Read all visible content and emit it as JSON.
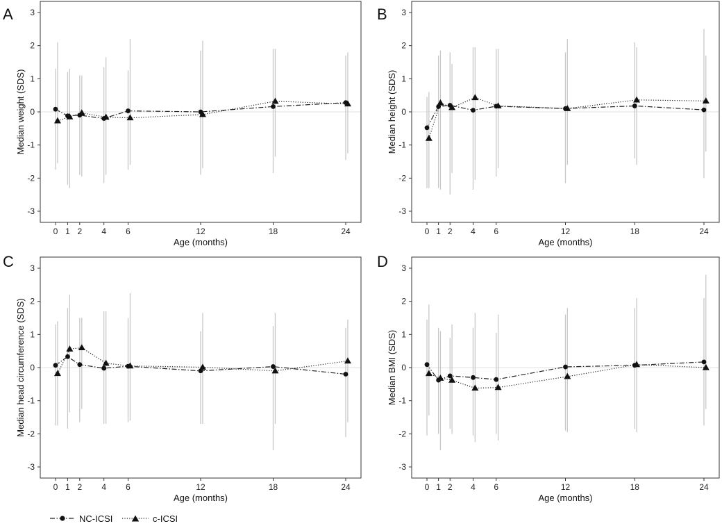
{
  "legend": {
    "nc_label": "NC-ICSI",
    "c_label": "c-ICSI"
  },
  "chart_data": [
    {
      "type": "line",
      "panel": "A",
      "title": "",
      "xlabel": "Age (months)",
      "ylabel": "Median weight (SDS)",
      "x": [
        0,
        1,
        2,
        4,
        6,
        12,
        18,
        24
      ],
      "xticks": [
        0,
        1,
        2,
        4,
        6,
        12,
        18,
        24
      ],
      "ylim": [
        -3,
        3
      ],
      "yticks": [
        -3,
        -2,
        -1,
        0,
        1,
        2,
        3
      ],
      "grid": false,
      "series": [
        {
          "name": "NC-ICSI",
          "marker": "circle",
          "line": "dash-dot",
          "values": [
            0.08,
            -0.12,
            -0.1,
            -0.2,
            0.03,
            0.0,
            0.16,
            0.28
          ],
          "lower": [
            -1.75,
            -2.2,
            -1.9,
            -2.15,
            -1.75,
            -1.9,
            -1.85,
            -1.45
          ],
          "upper": [
            1.3,
            1.2,
            1.1,
            1.35,
            1.25,
            1.85,
            1.9,
            1.7
          ]
        },
        {
          "name": "c-ICSI",
          "marker": "triangle",
          "line": "dotted",
          "values": [
            -0.27,
            -0.15,
            -0.03,
            -0.16,
            -0.18,
            -0.08,
            0.32,
            0.24
          ],
          "lower": [
            -1.55,
            -2.3,
            -1.95,
            -1.9,
            -1.6,
            -1.7,
            -1.35,
            -1.25
          ],
          "upper": [
            2.1,
            1.3,
            1.1,
            1.65,
            2.2,
            2.15,
            1.9,
            1.8
          ]
        }
      ]
    },
    {
      "type": "line",
      "panel": "B",
      "title": "",
      "xlabel": "Age (months)",
      "ylabel": "Median height (SDS)",
      "x": [
        0,
        1,
        2,
        4,
        6,
        12,
        18,
        24
      ],
      "xticks": [
        0,
        1,
        2,
        4,
        6,
        12,
        18,
        24
      ],
      "ylim": [
        -3,
        3
      ],
      "yticks": [
        -3,
        -2,
        -1,
        0,
        1,
        2,
        3
      ],
      "grid": false,
      "series": [
        {
          "name": "NC-ICSI",
          "marker": "circle",
          "line": "dash-dot",
          "values": [
            -0.48,
            0.16,
            0.2,
            0.05,
            0.17,
            0.1,
            0.18,
            0.06
          ],
          "lower": [
            -2.3,
            -2.3,
            -2.5,
            -2.35,
            -1.95,
            -2.15,
            -1.4,
            -2.0
          ],
          "upper": [
            0.45,
            1.7,
            1.8,
            1.95,
            1.9,
            1.8,
            2.1,
            2.5
          ]
        },
        {
          "name": "c-ICSI",
          "marker": "triangle",
          "line": "dotted",
          "values": [
            -0.8,
            0.27,
            0.13,
            0.43,
            0.18,
            0.1,
            0.36,
            0.33
          ],
          "lower": [
            -2.3,
            -2.35,
            -1.85,
            -2.05,
            -1.7,
            -1.6,
            -1.6,
            -1.2
          ],
          "upper": [
            0.6,
            1.85,
            1.45,
            1.95,
            1.9,
            2.2,
            1.95,
            1.7
          ]
        }
      ]
    },
    {
      "type": "line",
      "panel": "C",
      "title": "",
      "xlabel": "Age (months)",
      "ylabel": "Median head circumference (SDS)",
      "x": [
        0,
        1,
        2,
        4,
        6,
        12,
        18,
        24
      ],
      "xticks": [
        0,
        1,
        2,
        4,
        6,
        12,
        18,
        24
      ],
      "ylim": [
        -3,
        3
      ],
      "yticks": [
        -3,
        -2,
        -1,
        0,
        1,
        2,
        3
      ],
      "grid": false,
      "series": [
        {
          "name": "NC-ICSI",
          "marker": "circle",
          "line": "dash-dot",
          "values": [
            0.07,
            0.33,
            0.09,
            -0.02,
            0.04,
            -0.1,
            0.03,
            -0.2
          ],
          "lower": [
            -1.75,
            -1.85,
            -1.65,
            -1.7,
            -1.65,
            -1.7,
            -2.5,
            -2.1
          ],
          "upper": [
            1.3,
            1.8,
            1.5,
            1.7,
            1.5,
            1.1,
            1.25,
            1.2
          ]
        },
        {
          "name": "c-ICSI",
          "marker": "triangle",
          "line": "dotted",
          "values": [
            -0.18,
            0.56,
            0.6,
            0.13,
            0.05,
            0.01,
            -0.1,
            0.2
          ],
          "lower": [
            -1.75,
            -1.35,
            -1.25,
            -1.7,
            -1.6,
            -1.7,
            -1.7,
            -1.65
          ],
          "upper": [
            1.4,
            2.2,
            1.5,
            1.7,
            2.25,
            1.65,
            1.65,
            1.45
          ]
        }
      ]
    },
    {
      "type": "line",
      "panel": "D",
      "title": "",
      "xlabel": "Age (months)",
      "ylabel": "Median BMI (SDS)",
      "x": [
        0,
        1,
        2,
        4,
        6,
        12,
        18,
        24
      ],
      "xticks": [
        0,
        1,
        2,
        4,
        6,
        12,
        18,
        24
      ],
      "ylim": [
        -3,
        3
      ],
      "yticks": [
        -3,
        -2,
        -1,
        0,
        1,
        2,
        3
      ],
      "grid": false,
      "series": [
        {
          "name": "NC-ICSI",
          "marker": "circle",
          "line": "dash-dot",
          "values": [
            0.09,
            -0.38,
            -0.25,
            -0.3,
            -0.36,
            0.02,
            0.07,
            0.17
          ],
          "lower": [
            -2.05,
            -2.0,
            -1.85,
            -2.05,
            -2.0,
            -1.9,
            -1.85,
            -1.75
          ],
          "upper": [
            1.45,
            1.2,
            0.9,
            1.2,
            1.05,
            1.6,
            1.8,
            2.1
          ]
        },
        {
          "name": "c-ICSI",
          "marker": "triangle",
          "line": "dotted",
          "values": [
            -0.18,
            -0.32,
            -0.38,
            -0.62,
            -0.6,
            -0.27,
            0.09,
            0.0
          ],
          "lower": [
            -1.45,
            -2.5,
            -2.0,
            -2.25,
            -2.2,
            -1.95,
            -1.95,
            -1.25
          ],
          "upper": [
            1.9,
            1.1,
            1.3,
            1.65,
            1.6,
            1.8,
            2.1,
            2.8
          ]
        }
      ]
    }
  ]
}
